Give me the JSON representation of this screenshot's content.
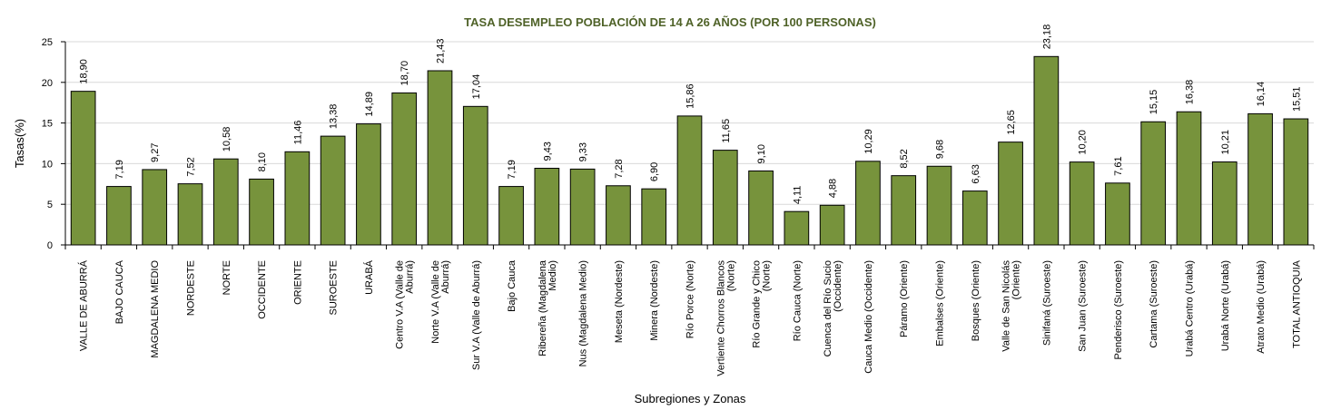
{
  "colors": {
    "bar": "#77933c",
    "bar_stroke": "#000000",
    "title": "#4f6228",
    "grid": "#d9d9d9"
  },
  "chart_data": {
    "type": "bar",
    "title": "TASA DESEMPLEO POBLACIÓN DE 14 A 26 AÑOS (POR 100 PERSONAS)",
    "xlabel": "Subregiones y Zonas",
    "ylabel": "Tasas(%)",
    "ylim": [
      0,
      25
    ],
    "yticks": [
      "0",
      "5",
      "10",
      "15",
      "20",
      "25"
    ],
    "grid": true,
    "legend": "none",
    "categories": [
      "VALLE DE ABURRÁ",
      "BAJO CAUCA",
      "MAGDALENA MEDIO",
      "NORDESTE",
      "NORTE",
      "OCCIDENTE",
      "ORIENTE",
      "SUROESTE",
      "URABÁ",
      "Centro V.A (Valle de Aburrá)",
      "Norte V.A (Valle de Aburrá)",
      "Sur V.A (Valle de Aburrá)",
      "Bajo Cauca",
      "Ribereña (Magdalena Medio)",
      "Nus (Magdalena Medio)",
      "Meseta (Nordeste)",
      "Minera (Nordeste)",
      "Río Porce (Norte)",
      "Vertiente Chorros Blancos (Norte)",
      "Río Grande y Chico (Norte)",
      "Río Cauca (Norte)",
      "Cuenca del Río Sucio (Occidente)",
      "Cauca Medio (Occidente)",
      "Páramo (Oriente)",
      "Embalses (Oriente)",
      "Bosques (Oriente)",
      "Valle de San Nicolás (Oriente)",
      "Sinifaná (Suroeste)",
      "San Juan (Suroeste)",
      "Penderisco (Suroeste)",
      "Cartama (Suroeste)",
      "Urabá Centro (Urabá)",
      "Urabá Norte (Urabá)",
      "Atrato Medio (Urabá)",
      "TOTAL ANTIOQUIA"
    ],
    "category_lines": [
      [
        "VALLE DE ABURRÁ"
      ],
      [
        "BAJO CAUCA"
      ],
      [
        "MAGDALENA MEDIO"
      ],
      [
        "NORDESTE"
      ],
      [
        "NORTE"
      ],
      [
        "OCCIDENTE"
      ],
      [
        "ORIENTE"
      ],
      [
        "SUROESTE"
      ],
      [
        "URABÁ"
      ],
      [
        "Centro V.A (Valle de",
        "Aburrá)"
      ],
      [
        "Norte V.A (Valle de",
        "Aburrá)"
      ],
      [
        "Sur V.A (Valle de Aburrá)"
      ],
      [
        "Bajo Cauca"
      ],
      [
        "Ribereña  (Magdalena",
        "Medio)"
      ],
      [
        "Nus  (Magdalena Medio)"
      ],
      [
        "Meseta  (Nordeste)"
      ],
      [
        "Minera  (Nordeste)"
      ],
      [
        "Río Porce  (Norte)"
      ],
      [
        "Vertiente Chorros Blancos",
        "(Norte)"
      ],
      [
        "Río Grande y Chico",
        "(Norte)"
      ],
      [
        "Río Cauca  (Norte)"
      ],
      [
        "Cuenca del Río Sucio",
        "(Occidente)"
      ],
      [
        "Cauca Medio  (Occidente)"
      ],
      [
        "Páramo  (Oriente)"
      ],
      [
        "Embalses  (Oriente)"
      ],
      [
        "Bosques  (Oriente)"
      ],
      [
        "Valle de San Nicolás",
        "(Oriente)"
      ],
      [
        "Sinifaná  (Suroeste)"
      ],
      [
        "San Juan  (Suroeste)"
      ],
      [
        "Penderisco  (Suroeste)"
      ],
      [
        "Cartama  (Suroeste)"
      ],
      [
        "Urabá Centro  (Urabá)"
      ],
      [
        "Urabá Norte  (Urabá)"
      ],
      [
        "Atrato Medio  (Urabá)"
      ],
      [
        "TOTAL ANTIOQUIA"
      ]
    ],
    "values": [
      18.9,
      7.19,
      9.27,
      7.52,
      10.58,
      8.1,
      11.46,
      13.38,
      14.89,
      18.7,
      21.43,
      17.04,
      7.19,
      9.43,
      9.33,
      7.28,
      6.9,
      15.86,
      11.65,
      9.1,
      4.11,
      4.88,
      10.29,
      8.52,
      9.68,
      6.63,
      12.65,
      23.18,
      10.2,
      7.61,
      15.15,
      16.38,
      10.21,
      16.14,
      15.51
    ],
    "value_labels": [
      "18,90",
      "7,19",
      "9,27",
      "7,52",
      "10,58",
      "8,10",
      "11,46",
      "13,38",
      "14,89",
      "18,70",
      "21,43",
      "17,04",
      "7,19",
      "9,43",
      "9,33",
      "7,28",
      "6,90",
      "15,86",
      "11,65",
      "9,10",
      "4,11",
      "4,88",
      "10,29",
      "8,52",
      "9,68",
      "6,63",
      "12,65",
      "23,18",
      "10,20",
      "7,61",
      "15,15",
      "16,38",
      "10,21",
      "16,14",
      "15,51"
    ]
  }
}
